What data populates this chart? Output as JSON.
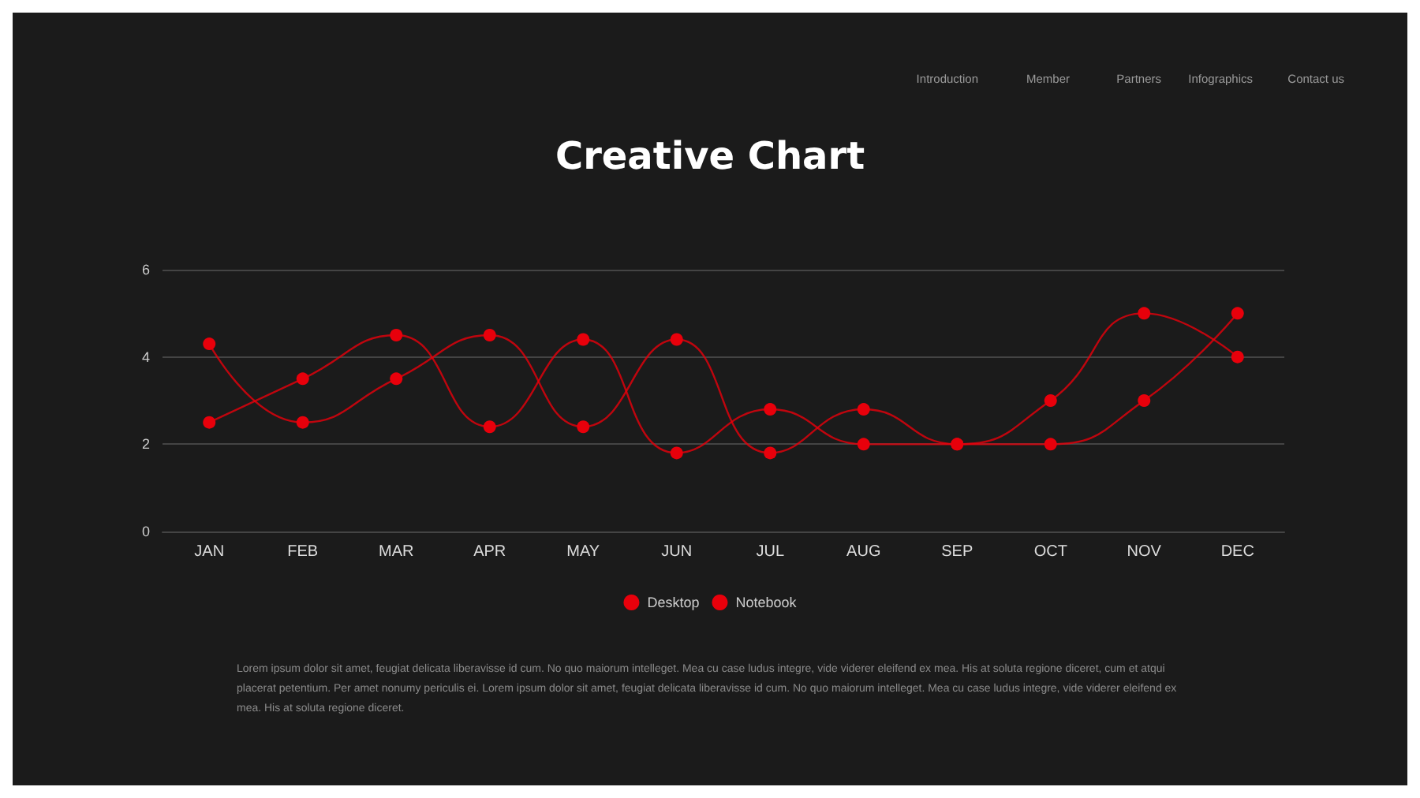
{
  "chart_data": {
    "type": "line",
    "title": "Creative Chart",
    "categories": [
      "JAN",
      "FEB",
      "MAR",
      "APR",
      "MAY",
      "JUN",
      "JUL",
      "AUG",
      "SEP",
      "OCT",
      "NOV",
      "DEC"
    ],
    "series": [
      {
        "name": "Desktop",
        "color": "#e8000b",
        "values": [
          4.3,
          2.5,
          3.5,
          4.5,
          2.4,
          4.4,
          1.8,
          2.8,
          2.0,
          2.0,
          3.0,
          5.0
        ]
      },
      {
        "name": "Notebook",
        "color": "#e8000b",
        "values": [
          2.5,
          3.5,
          4.5,
          2.4,
          4.4,
          1.8,
          2.8,
          2.0,
          2.0,
          3.0,
          5.0,
          4.0
        ]
      }
    ],
    "ylim": [
      0,
      6
    ],
    "yticks": [
      0,
      2,
      4,
      6
    ],
    "grid": "y",
    "legend": "bottom",
    "marker": "circle",
    "line_style": "solid",
    "annotations": [
      "Introduction",
      "Member",
      "Partners",
      "Infographics",
      "Contact us",
      "Lorem ipsum dolor sit amet, feugiat delicata liberavisse id cum. No quo maiorum intelleget. Mea cu case ludus integre, vide viderer eleifend ex mea. His at soluta regione diceret, cum et atqui placerat petentium. Per amet nonumy periculis ei. Lorem ipsum dolor sit amet, feugiat delicata liberavisse id cum. No quo maiorum intelleget. Mea cu case ludus integre, vide viderer eleifend ex mea. His at soluta regione diceret."
    ]
  }
}
